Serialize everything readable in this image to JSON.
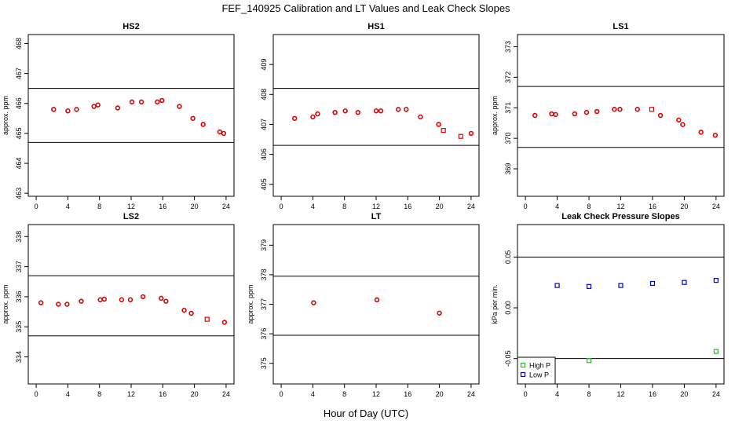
{
  "figure": {
    "title": "FEF_140925  Calibration and LT Values and Leak Check Slopes",
    "xlabel": "Hour of Day (UTC)"
  },
  "chart_data": [
    {
      "type": "scatter",
      "title": "HS2",
      "ylabel": "approx. ppm",
      "xlim": [
        -1,
        25
      ],
      "ylim": [
        462.9,
        468.3
      ],
      "xticks": [
        0,
        4,
        8,
        12,
        16,
        20,
        24
      ],
      "yticks": [
        463,
        464,
        465,
        466,
        467,
        468
      ],
      "hlines": [
        466.5,
        464.7
      ],
      "series": [
        {
          "color": "#dd0000",
          "marker": "circle",
          "x": [
            2.2,
            4.0,
            5.1,
            7.3,
            7.8,
            10.3,
            12.1,
            13.3,
            15.3,
            15.9,
            18.1,
            19.8,
            21.1,
            23.2,
            23.7
          ],
          "y": [
            465.8,
            465.75,
            465.8,
            465.9,
            465.95,
            465.85,
            466.05,
            466.05,
            466.05,
            466.1,
            465.9,
            465.5,
            465.3,
            465.05,
            465.0
          ]
        }
      ]
    },
    {
      "type": "scatter",
      "title": "HS1",
      "ylabel": "",
      "xlim": [
        -1,
        25
      ],
      "ylim": [
        404.6,
        410.0
      ],
      "xticks": [
        0,
        4,
        8,
        12,
        16,
        20,
        24
      ],
      "yticks": [
        405,
        406,
        407,
        408,
        409
      ],
      "hlines": [
        408.2,
        406.3
      ],
      "series": [
        {
          "color": "#dd0000",
          "marker": "circle",
          "x": [
            1.7,
            4.0,
            4.6,
            6.8,
            8.1,
            9.7,
            12.0,
            12.6,
            14.8,
            15.8,
            17.6,
            19.9
          ],
          "y": [
            407.2,
            407.25,
            407.35,
            407.4,
            407.45,
            407.4,
            407.45,
            407.45,
            407.5,
            407.5,
            407.25,
            407.0
          ]
        },
        {
          "color": "#dd0000",
          "marker": "square",
          "x": [
            20.5,
            22.7
          ],
          "y": [
            406.8,
            406.6
          ]
        },
        {
          "color": "#dd0000",
          "marker": "circle",
          "x": [
            24.0
          ],
          "y": [
            406.7
          ]
        }
      ]
    },
    {
      "type": "scatter",
      "title": "LS1",
      "ylabel": "approx. ppm",
      "xlim": [
        -1,
        25
      ],
      "ylim": [
        368.1,
        373.4
      ],
      "xticks": [
        0,
        4,
        8,
        12,
        16,
        20,
        24
      ],
      "yticks": [
        369,
        370,
        371,
        372,
        373
      ],
      "hlines": [
        371.7,
        369.7
      ],
      "series": [
        {
          "color": "#dd0000",
          "marker": "circle",
          "x": [
            1.2,
            3.3,
            3.8,
            6.2,
            7.7,
            9.0,
            11.2,
            11.9,
            14.1,
            17.0,
            19.3,
            19.8,
            22.1,
            23.9
          ],
          "y": [
            370.75,
            370.8,
            370.78,
            370.8,
            370.85,
            370.88,
            370.95,
            370.95,
            370.95,
            370.75,
            370.6,
            370.45,
            370.2,
            370.1
          ]
        },
        {
          "color": "#dd0000",
          "marker": "square",
          "x": [
            15.9
          ],
          "y": [
            370.95
          ]
        }
      ]
    },
    {
      "type": "scatter",
      "title": "LS2",
      "ylabel": "approx. ppm",
      "xlim": [
        -1,
        25
      ],
      "ylim": [
        333.1,
        338.4
      ],
      "xticks": [
        0,
        4,
        8,
        12,
        16,
        20,
        24
      ],
      "yticks": [
        334,
        335,
        336,
        337,
        338
      ],
      "hlines": [
        336.7,
        334.7
      ],
      "series": [
        {
          "color": "#dd0000",
          "marker": "circle",
          "x": [
            0.6,
            2.8,
            3.9,
            5.7,
            8.1,
            8.6,
            10.8,
            11.9,
            13.5,
            15.8,
            16.4,
            18.7,
            19.6,
            23.8
          ],
          "y": [
            335.8,
            335.75,
            335.75,
            335.85,
            335.9,
            335.92,
            335.9,
            335.9,
            336.0,
            335.95,
            335.85,
            335.55,
            335.45,
            335.15
          ]
        },
        {
          "color": "#dd0000",
          "marker": "square",
          "x": [
            21.6
          ],
          "y": [
            335.25
          ]
        }
      ]
    },
    {
      "type": "scatter",
      "title": "LT",
      "ylabel": "approx. ppm",
      "xlim": [
        -1,
        25
      ],
      "ylim": [
        374.3,
        379.7
      ],
      "xticks": [
        0,
        4,
        8,
        12,
        16,
        20,
        24
      ],
      "yticks": [
        375,
        376,
        377,
        378,
        379
      ],
      "hlines": [
        377.95,
        375.95
      ],
      "series": [
        {
          "color": "#dd0000",
          "marker": "circle",
          "x": [
            4.1,
            12.1,
            20.0
          ],
          "y": [
            377.05,
            377.15,
            376.7
          ]
        }
      ]
    },
    {
      "type": "scatter",
      "title": "Leak Check Pressure Slopes",
      "ylabel": "kPa per min.",
      "xlim": [
        -1,
        25
      ],
      "ylim": [
        -0.075,
        0.082
      ],
      "xticks": [
        0,
        4,
        8,
        12,
        16,
        20,
        24
      ],
      "yticks": [
        -0.05,
        0.0,
        0.05
      ],
      "ytick_labels": [
        "-0.05",
        "0.00",
        "0.05"
      ],
      "hlines": [
        0.05,
        -0.05
      ],
      "legend_position": "bottom-left",
      "series": [
        {
          "name": "High P",
          "color": "#22bb22",
          "marker": "square",
          "x": [
            8.0,
            24.0
          ],
          "y": [
            -0.052,
            -0.043
          ]
        },
        {
          "name": "Low P",
          "color": "#0000cc",
          "marker": "square",
          "x": [
            4.0,
            8.0,
            12.0,
            16.0,
            20.0,
            24.0
          ],
          "y": [
            0.022,
            0.021,
            0.022,
            0.024,
            0.025,
            0.027
          ]
        }
      ]
    }
  ]
}
